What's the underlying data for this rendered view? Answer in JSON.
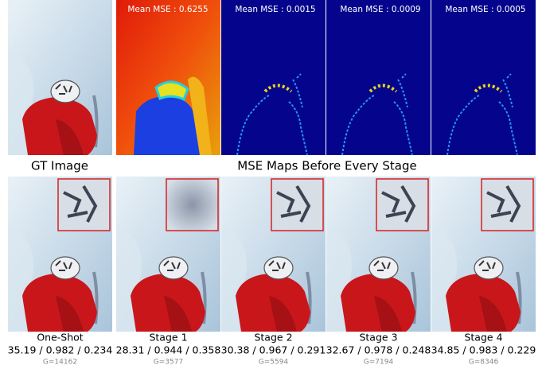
{
  "top": {
    "gt_caption": "GT Image",
    "maps_caption": "MSE Maps Before Every Stage",
    "maps": [
      "Mean MSE : 0.6255",
      "Mean MSE : 0.0015",
      "Mean MSE : 0.0009",
      "Mean MSE : 0.0005"
    ]
  },
  "bottom": [
    {
      "label": "One-Shot",
      "metrics": "35.19 / 0.982 / 0.234",
      "g": "G=14162"
    },
    {
      "label": "Stage 1",
      "metrics": "28.31 / 0.944 / 0.358",
      "g": "G=3577"
    },
    {
      "label": "Stage 2",
      "metrics": "30.38 / 0.967 / 0.291",
      "g": "G=5594"
    },
    {
      "label": "Stage 3",
      "metrics": "32.67 / 0.978 / 0.248",
      "g": "G=7194"
    },
    {
      "label": "Stage 4",
      "metrics": "34.85 / 0.983 / 0.229",
      "g": "G=8346"
    }
  ]
}
